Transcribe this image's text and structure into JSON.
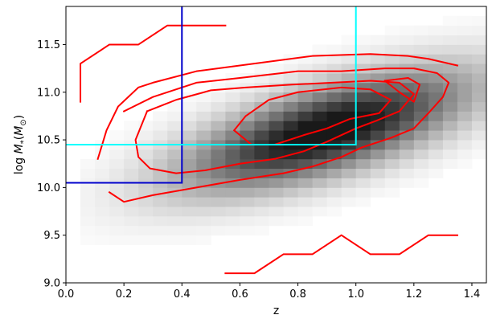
{
  "chart_data": {
    "type": "heatmap",
    "title": "",
    "xlabel": "z",
    "ylabel": "log M_*(M_⊙)",
    "ylabel_parts": {
      "prefix": "log ",
      "symbol": "M",
      "subscript": "*",
      "paren_open": "(",
      "unit_symbol": "M",
      "unit_subscript": "⊙",
      "paren_close": ")"
    },
    "xlim": [
      0.0,
      1.45
    ],
    "ylim": [
      9.0,
      11.9
    ],
    "grid": false,
    "x_ticks": [
      {
        "value": 0.0,
        "label": "0.0"
      },
      {
        "value": 0.2,
        "label": "0.2"
      },
      {
        "value": 0.4,
        "label": "0.4"
      },
      {
        "value": 0.6,
        "label": "0.6"
      },
      {
        "value": 0.8,
        "label": "0.8"
      },
      {
        "value": 1.0,
        "label": "1.0"
      },
      {
        "value": 1.2,
        "label": "1.2"
      },
      {
        "value": 1.4,
        "label": "1.4"
      }
    ],
    "y_ticks": [
      {
        "value": 9.0,
        "label": "9.0"
      },
      {
        "value": 9.5,
        "label": "9.5"
      },
      {
        "value": 10.0,
        "label": "10.0"
      },
      {
        "value": 10.5,
        "label": "10.5"
      },
      {
        "value": 11.0,
        "label": "11.0"
      },
      {
        "value": 11.5,
        "label": "11.5"
      }
    ],
    "heatmap": {
      "colormap": "greys",
      "x_bins": [
        0.0,
        1.45,
        29
      ],
      "y_bins": [
        9.0,
        11.9,
        29
      ],
      "density_model": {
        "ridge_intercept": 9.83,
        "ridge_slope": 0.85,
        "width": 0.32,
        "z_peak": 0.9,
        "z_spread": 0.34,
        "z_min": 0.04,
        "z_max": 1.48
      }
    },
    "contour_series": [
      {
        "color": "#ff0000",
        "points": [
          [
            0.11,
            10.3
          ],
          [
            0.14,
            10.6
          ],
          [
            0.18,
            10.85
          ],
          [
            0.25,
            11.05
          ],
          [
            0.3,
            11.1
          ],
          [
            0.45,
            11.22
          ],
          [
            0.65,
            11.3
          ],
          [
            0.85,
            11.38
          ],
          [
            1.05,
            11.4
          ],
          [
            1.18,
            11.38
          ],
          [
            1.25,
            11.35
          ],
          [
            1.35,
            11.28
          ]
        ]
      },
      {
        "color": "#ff0000",
        "points": [
          [
            0.2,
            10.8
          ],
          [
            0.3,
            10.95
          ],
          [
            0.45,
            11.1
          ],
          [
            0.6,
            11.15
          ],
          [
            0.8,
            11.22
          ],
          [
            0.95,
            11.22
          ],
          [
            1.1,
            11.25
          ],
          [
            1.2,
            11.25
          ],
          [
            1.28,
            11.2
          ],
          [
            1.32,
            11.1
          ],
          [
            1.3,
            10.95
          ],
          [
            1.25,
            10.78
          ],
          [
            1.2,
            10.62
          ],
          [
            1.12,
            10.52
          ],
          [
            1.02,
            10.42
          ],
          [
            0.95,
            10.32
          ],
          [
            0.85,
            10.22
          ],
          [
            0.75,
            10.15
          ],
          [
            0.6,
            10.08
          ],
          [
            0.45,
            10.0
          ],
          [
            0.3,
            9.92
          ],
          [
            0.2,
            9.85
          ],
          [
            0.15,
            9.95
          ]
        ]
      },
      {
        "color": "#ff0000",
        "points": [
          [
            0.28,
            10.8
          ],
          [
            0.38,
            10.92
          ],
          [
            0.5,
            11.02
          ],
          [
            0.62,
            11.05
          ],
          [
            0.78,
            11.08
          ],
          [
            0.92,
            11.1
          ],
          [
            1.05,
            11.12
          ],
          [
            1.15,
            11.1
          ],
          [
            1.2,
            10.98
          ],
          [
            1.15,
            10.8
          ],
          [
            1.07,
            10.7
          ],
          [
            1.0,
            10.62
          ],
          [
            0.9,
            10.48
          ],
          [
            0.82,
            10.38
          ],
          [
            0.72,
            10.3
          ],
          [
            0.6,
            10.25
          ],
          [
            0.48,
            10.18
          ],
          [
            0.38,
            10.15
          ],
          [
            0.29,
            10.2
          ],
          [
            0.25,
            10.32
          ],
          [
            0.24,
            10.5
          ],
          [
            0.28,
            10.8
          ]
        ]
      },
      {
        "color": "#ff0000",
        "points": [
          [
            0.58,
            10.6
          ],
          [
            0.62,
            10.75
          ],
          [
            0.7,
            10.92
          ],
          [
            0.8,
            11.0
          ],
          [
            0.95,
            11.05
          ],
          [
            1.05,
            11.03
          ],
          [
            1.12,
            10.92
          ],
          [
            1.08,
            10.78
          ],
          [
            0.98,
            10.72
          ],
          [
            0.9,
            10.62
          ],
          [
            0.82,
            10.55
          ],
          [
            0.72,
            10.45
          ],
          [
            0.64,
            10.45
          ],
          [
            0.58,
            10.6
          ]
        ]
      },
      {
        "color": "#ff0000",
        "points": [
          [
            1.1,
            11.12
          ],
          [
            1.18,
            11.15
          ],
          [
            1.22,
            11.08
          ],
          [
            1.2,
            10.9
          ],
          [
            1.15,
            11.0
          ],
          [
            1.1,
            11.12
          ]
        ]
      },
      {
        "color": "#ff0000",
        "points": [
          [
            0.05,
            10.9
          ],
          [
            0.05,
            11.3
          ],
          [
            0.15,
            11.5
          ],
          [
            0.25,
            11.5
          ],
          [
            0.35,
            11.7
          ],
          [
            0.55,
            11.7
          ]
        ]
      },
      {
        "color": "#ff0000",
        "points": [
          [
            0.55,
            9.1
          ],
          [
            0.65,
            9.1
          ],
          [
            0.75,
            9.3
          ],
          [
            0.85,
            9.3
          ],
          [
            0.95,
            9.5
          ],
          [
            1.05,
            9.3
          ],
          [
            1.15,
            9.3
          ],
          [
            1.25,
            9.5
          ],
          [
            1.35,
            9.5
          ]
        ]
      }
    ],
    "cut_lines": [
      {
        "color": "#0000cc",
        "points": [
          [
            0.0,
            10.05
          ],
          [
            0.4,
            10.05
          ],
          [
            0.4,
            11.9
          ]
        ]
      },
      {
        "color": "#00ffff",
        "points": [
          [
            0.0,
            10.45
          ],
          [
            1.0,
            10.45
          ],
          [
            1.0,
            11.9
          ]
        ]
      }
    ]
  }
}
